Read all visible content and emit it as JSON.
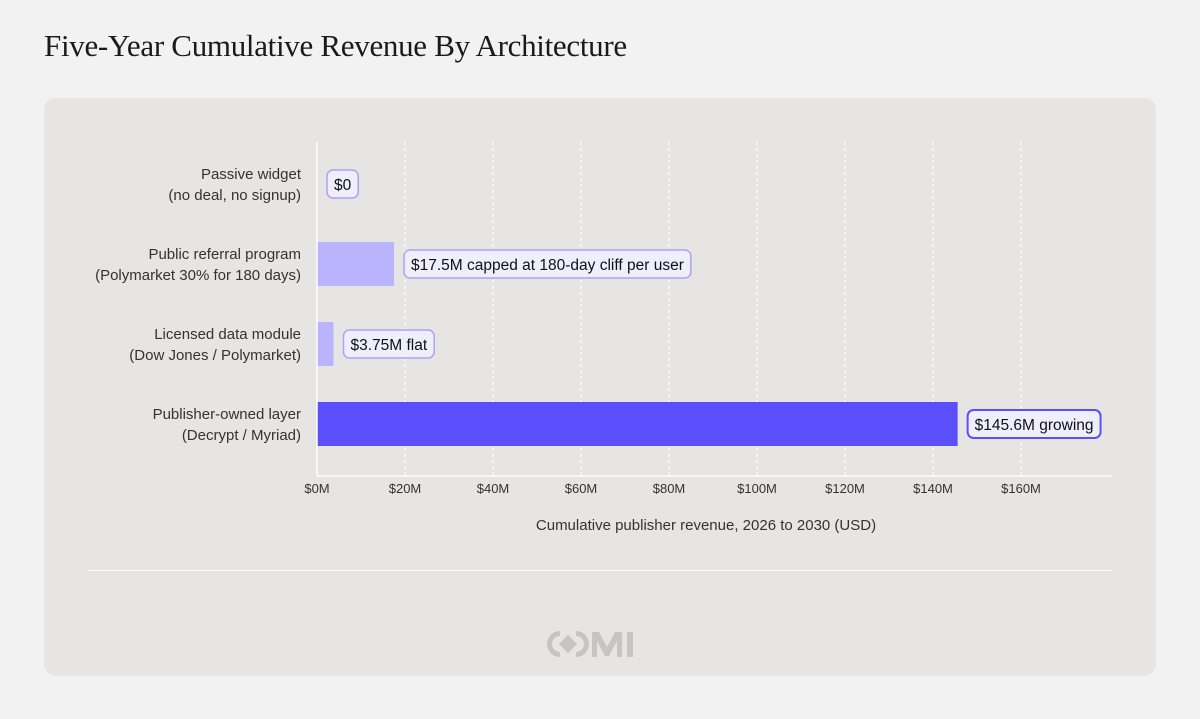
{
  "title": "Five-Year Cumulative Revenue By Architecture",
  "colors": {
    "page_bg": "#f2f2f2",
    "panel_bg": "#e6e5e3",
    "light_bar": "#b9b4fb",
    "dark_bar": "#5a4ffb",
    "light_label_border": "#a9a3f3",
    "dark_label_border": "#5a4ffb",
    "label_bg": "#efeefd",
    "gridline": "#ffffff",
    "logo": "#c6c5c3"
  },
  "logo": {
    "icon": "omi-logo-icon"
  },
  "chart_data": {
    "type": "bar",
    "orientation": "horizontal",
    "categories": [
      {
        "line1": "Passive widget",
        "line2": "(no deal, no signup)"
      },
      {
        "line1": "Public referral program",
        "line2": "(Polymarket 30% for 180 days)"
      },
      {
        "line1": "Licensed data module",
        "line2": "(Dow Jones / Polymarket)"
      },
      {
        "line1": "Publisher-owned layer",
        "line2": "(Decrypt / Myriad)"
      }
    ],
    "values": [
      0,
      17.5,
      3.75,
      145.6
    ],
    "value_units": "$M",
    "data_labels": [
      "$0",
      "$17.5M capped at 180-day cliff per user",
      "$3.75M flat",
      "$145.6M growing"
    ],
    "highlight": [
      false,
      false,
      false,
      true
    ],
    "xlabel": "Cumulative publisher revenue, 2026 to 2030 (USD)",
    "ylabel": "",
    "xlim": [
      0,
      180
    ],
    "xticks": [
      0,
      20,
      40,
      60,
      80,
      100,
      120,
      140,
      160
    ],
    "xtick_labels": [
      "$0M",
      "$20M",
      "$40M",
      "$60M",
      "$80M",
      "$100M",
      "$120M",
      "$140M",
      "$160M"
    ],
    "grid": "vertical dashed",
    "legend": "none"
  }
}
